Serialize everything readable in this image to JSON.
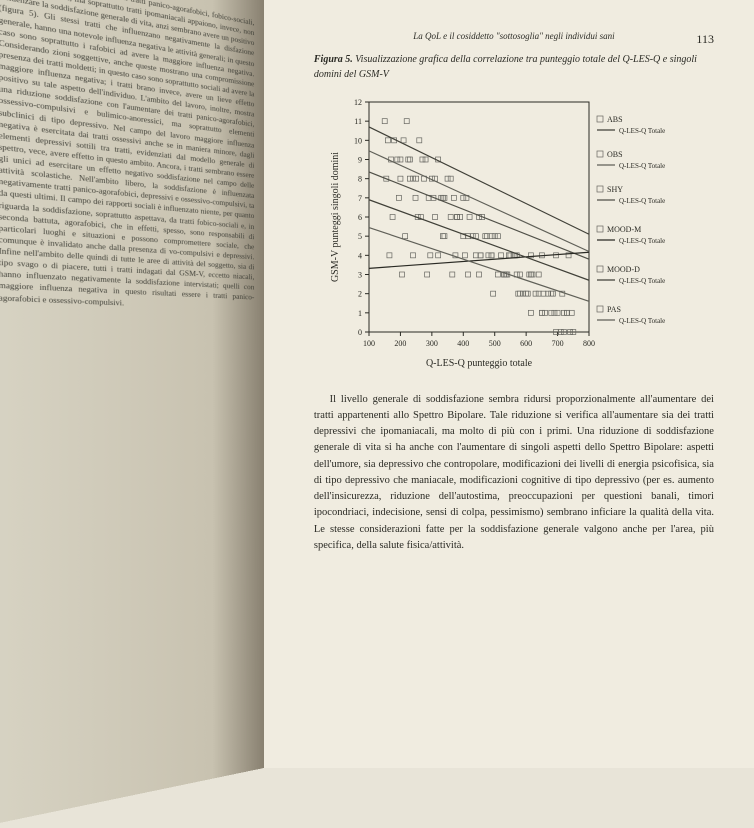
{
  "page_number": "113",
  "running_header": "La QoL e il cosiddetto \"sottosoglia\" negli individui sani",
  "figure_caption_prefix": "Figura 5.",
  "figure_caption_text": "Visualizzazione grafica della correlazione tra punteggio totale del Q-LES-Q e singoli domini del GSM-V",
  "chart": {
    "type": "scatter",
    "xlabel": "Q-LES-Q punteggio totale",
    "ylabel": "GSM-V punteggi singoli domini",
    "xlim": [
      100,
      800
    ],
    "ylim": [
      0,
      12
    ],
    "xticks": [
      100,
      200,
      300,
      400,
      500,
      600,
      700,
      800
    ],
    "yticks": [
      0,
      1,
      2,
      3,
      4,
      5,
      6,
      7,
      8,
      9,
      10,
      11,
      12
    ],
    "label_fontsize": 10,
    "tick_fontsize": 8,
    "background_color": "#f0ece0",
    "axis_color": "#2a2a24",
    "marker_color": "#666660",
    "marker_style": "open-square",
    "marker_size": 5,
    "line_width": 1.2,
    "series": [
      {
        "name": "ABS",
        "sublabel": "Q-LES-Q Totale",
        "slope": -0.008,
        "intercept": 11.5,
        "color": "#404038"
      },
      {
        "name": "OBS",
        "sublabel": "Q-LES-Q Totale",
        "slope": -0.0075,
        "intercept": 10.2,
        "color": "#606058"
      },
      {
        "name": "SHY",
        "sublabel": "Q-LES-Q Totale",
        "slope": -0.0065,
        "intercept": 9.0,
        "color": "#505048"
      },
      {
        "name": "MOOD-M",
        "sublabel": "Q-LES-Q Totale",
        "slope": 0.0012,
        "intercept": 3.2,
        "color": "#2a2a24"
      },
      {
        "name": "MOOD-D",
        "sublabel": "Q-LES-Q Totale",
        "slope": -0.006,
        "intercept": 7.5,
        "color": "#404038"
      },
      {
        "name": "PAS",
        "sublabel": "Q-LES-Q Totale",
        "slope": -0.0055,
        "intercept": 6.0,
        "color": "#606058"
      }
    ],
    "scatter_points": [
      [
        150,
        11
      ],
      [
        180,
        10
      ],
      [
        200,
        9
      ],
      [
        220,
        11
      ],
      [
        240,
        8
      ],
      [
        260,
        10
      ],
      [
        280,
        9
      ],
      [
        300,
        8
      ],
      [
        320,
        9
      ],
      [
        340,
        7
      ],
      [
        360,
        8
      ],
      [
        380,
        6
      ],
      [
        400,
        7
      ],
      [
        420,
        6
      ],
      [
        440,
        5
      ],
      [
        460,
        6
      ],
      [
        480,
        4
      ],
      [
        500,
        5
      ],
      [
        520,
        4
      ],
      [
        540,
        3
      ],
      [
        560,
        4
      ],
      [
        580,
        3
      ],
      [
        600,
        2
      ],
      [
        620,
        3
      ],
      [
        640,
        2
      ],
      [
        660,
        1
      ],
      [
        680,
        2
      ],
      [
        700,
        1
      ],
      [
        720,
        1
      ],
      [
        740,
        0
      ],
      [
        160,
        10
      ],
      [
        190,
        9
      ],
      [
        210,
        10
      ],
      [
        230,
        9
      ],
      [
        250,
        8
      ],
      [
        270,
        9
      ],
      [
        290,
        7
      ],
      [
        310,
        8
      ],
      [
        330,
        7
      ],
      [
        350,
        8
      ],
      [
        370,
        7
      ],
      [
        390,
        6
      ],
      [
        410,
        7
      ],
      [
        430,
        5
      ],
      [
        450,
        6
      ],
      [
        470,
        5
      ],
      [
        490,
        4
      ],
      [
        510,
        5
      ],
      [
        530,
        3
      ],
      [
        550,
        4
      ],
      [
        570,
        3
      ],
      [
        590,
        2
      ],
      [
        610,
        3
      ],
      [
        630,
        2
      ],
      [
        650,
        1
      ],
      [
        670,
        2
      ],
      [
        690,
        1
      ],
      [
        710,
        0
      ],
      [
        730,
        1
      ],
      [
        750,
        0
      ],
      [
        170,
        9
      ],
      [
        200,
        8
      ],
      [
        225,
        9
      ],
      [
        248,
        7
      ],
      [
        275,
        8
      ],
      [
        310,
        6
      ],
      [
        335,
        7
      ],
      [
        360,
        6
      ],
      [
        400,
        5
      ],
      [
        440,
        4
      ],
      [
        475,
        5
      ],
      [
        510,
        3
      ],
      [
        545,
        4
      ],
      [
        580,
        2
      ],
      [
        615,
        3
      ],
      [
        650,
        1
      ],
      [
        685,
        2
      ],
      [
        720,
        0
      ],
      [
        165,
        4
      ],
      [
        205,
        3
      ],
      [
        240,
        4
      ],
      [
        285,
        3
      ],
      [
        320,
        4
      ],
      [
        365,
        3
      ],
      [
        405,
        4
      ],
      [
        450,
        3
      ],
      [
        490,
        4
      ],
      [
        535,
        3
      ],
      [
        570,
        4
      ],
      [
        615,
        4
      ],
      [
        650,
        4
      ],
      [
        695,
        4
      ],
      [
        735,
        4
      ],
      [
        155,
        8
      ],
      [
        195,
        7
      ],
      [
        230,
        8
      ],
      [
        265,
        6
      ],
      [
        305,
        7
      ],
      [
        340,
        5
      ],
      [
        380,
        6
      ],
      [
        415,
        5
      ],
      [
        455,
        4
      ],
      [
        490,
        5
      ],
      [
        530,
        3
      ],
      [
        565,
        4
      ],
      [
        605,
        2
      ],
      [
        640,
        3
      ],
      [
        680,
        1
      ],
      [
        715,
        2
      ],
      [
        745,
        1
      ],
      [
        175,
        6
      ],
      [
        215,
        5
      ],
      [
        255,
        6
      ],
      [
        295,
        4
      ],
      [
        335,
        5
      ],
      [
        375,
        4
      ],
      [
        415,
        3
      ],
      [
        455,
        4
      ],
      [
        495,
        2
      ],
      [
        535,
        3
      ],
      [
        575,
        2
      ],
      [
        615,
        1
      ],
      [
        655,
        2
      ],
      [
        695,
        0
      ],
      [
        730,
        1
      ]
    ]
  },
  "body_paragraph": "Il livello generale di soddisfazione sembra ridursi proporzionalmente all'aumentare dei tratti appartenenti allo Spettro Bipolare. Tale riduzione si verifica all'aumentare sia dei tratti depressivi che ipomaniacali, ma molto di più con i primi. Una riduzione di soddisfazione generale di vita si ha anche con l'aumentare di singoli aspetti dello Spettro Bipolare: aspetti dell'umore, sia depressivo che contropolare, modificazioni dei livelli di energia psicofisica, sia di tipo depressivo che maniacale, modificazioni cognitive di tipo depressivo (per es. aumento dell'insicurezza, riduzione dell'autostima, preoccupazioni per questioni banali, timori ipocondriaci, indecisione, sensi di colpa, pessimismo) sembrano inficiare la qualità della vita. Le stesse considerazioni fatte per la soddisfazione generale valgono anche per l'area, più specifica, della salute fisica/attività.",
  "left_page_text": "spettro, in particolare in presenza di tratti panico-agorafobici, fobico-sociali, bulimico-anoressici, ma soprattutto tratti ipomaniacali appaiono, invece, non influenzare la soddisfazione generale di vita, anzi sembrano avere un positivo (figura 5). Gli stessi tratti che influenzano negativamente la disfazione generale, hanno una notevole influenza negativa le attività generali; in questo caso sono soprattutto i rafobici ad avere la maggiore influenza negativa. Considerando zioni soggettive, anche queste mostrano una compromissione presenza dei tratti moldetti; in questo caso sono soprattutto sociali ad avere la maggiore influenza negativa; i tratti brano invece, avere un lieve effetto positivo su tale aspetto dell'individuo. L'ambito del lavoro, inoltre, mostra una riduzione soddisfazione con l'aumentare dei tratti panico-agorafobici, ossessivo-compulsivi e bulimico-anoressici, ma soprattutto elementi subclinici di tipo depressivo. Nel campo del lavoro maggiore influenza negativa è esercitata dai tratti ossessivi anche se in maniera minore, dagli elementi depressivi sottili tra tratti, evidenziati dal modello generale di spettro, vece, avere effetto in questo ambito. Ancora, i tratti sembrano essere gli unici ad esercitare un effetto negativo soddisfazione nel campo delle attività scolastiche. Nell'ambito libero, la soddisfazione è influenzata negativamente tratti panico-agorafobici, depressivi e ossessivo-compulsivi, ta da questi ultimi. Il campo dei rapporti sociali è influenzato niente, per quanto riguarda la soddisfazione, soprattutto aspettava, da tratti fobico-sociali e, in seconda battuta, agorafobici, che in effetti, spesso, sono responsabili di particolari luoghi e situazioni e possono compromettere sociale, che comunque è invalidato anche dalla presenza di vo-compulsivi e depressivi. Infine nell'ambito delle quindi di tutte le aree di attività del soggetto, sia di tipo svago o di piacere, tutti i tratti indagati dal GSM-V, eccetto niacali, hanno influenzato negativamente la soddisfazione intervistati; quelli con maggiore influenza negativa in questo risultati essere i tratti panico-agorafobici e ossessivo-compulsivi."
}
